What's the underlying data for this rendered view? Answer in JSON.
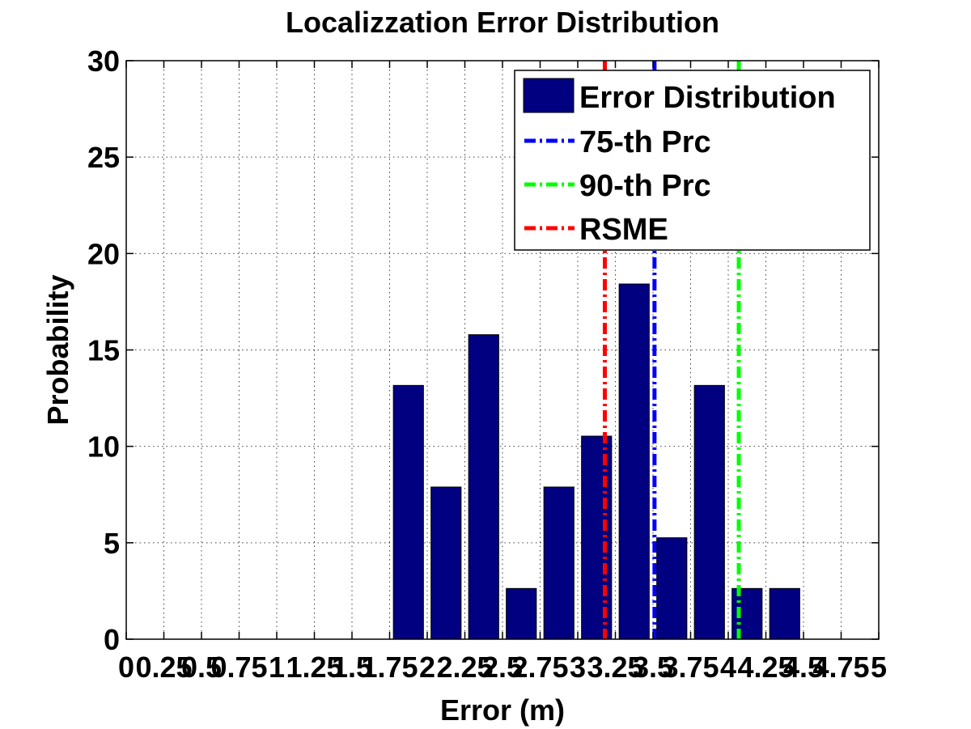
{
  "chart_data": {
    "type": "bar",
    "title": "Localizzation Error Distribution",
    "xlabel": "Error (m)",
    "ylabel": "Probability",
    "xlim": [
      0,
      5
    ],
    "ylim": [
      0,
      30
    ],
    "grid": true,
    "legend_position": "top-right",
    "x_tick_labels": [
      "0",
      "0.25",
      "0.5",
      "0.75",
      "1",
      "1.25",
      "1.5",
      "1.75",
      "2",
      "2.25",
      "2.5",
      "2.75",
      "3",
      "3.25",
      "3.5",
      "3.75",
      "4",
      "4.25",
      "4.5",
      "4.75",
      "5"
    ],
    "y_tick_labels": [
      "0",
      "5",
      "10",
      "15",
      "20",
      "25",
      "30"
    ],
    "bar_series": {
      "name": "Error Distribution",
      "color": "#000080",
      "x": [
        1.875,
        2.125,
        2.375,
        2.625,
        2.875,
        3.125,
        3.375,
        3.625,
        3.875,
        4.125,
        4.375
      ],
      "values": [
        13.16,
        7.89,
        15.79,
        2.63,
        7.89,
        10.53,
        18.42,
        5.26,
        13.16,
        2.63,
        2.63
      ]
    },
    "lines": [
      {
        "name": "75-th Prc",
        "x": 3.51,
        "color": "#0000ff"
      },
      {
        "name": "90-th Prc",
        "x": 4.07,
        "color": "#00ff00"
      },
      {
        "name": "RSME",
        "x": 3.18,
        "color": "#ff0000"
      }
    ]
  }
}
